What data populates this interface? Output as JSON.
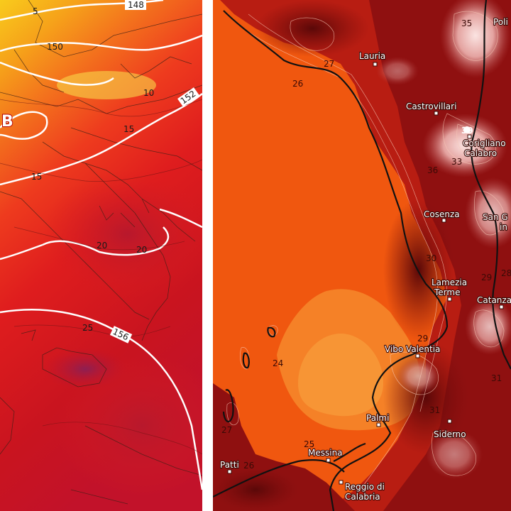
{
  "left_map": {
    "pressure_center": "B",
    "isohypses": [
      "148",
      "150",
      "152",
      "156"
    ],
    "isotherms": [
      "5",
      "10",
      "15",
      "15",
      "20",
      "20",
      "25"
    ]
  },
  "right_map": {
    "top_marker": "35",
    "cities": [
      {
        "name": "Lauria"
      },
      {
        "name": "Castrovillari"
      },
      {
        "name": "Corigliano",
        "name2": "Calabro"
      },
      {
        "name": "Cosenza"
      },
      {
        "name": "San G",
        "name2": "in"
      },
      {
        "name": "Lamezia",
        "name2": "Terme"
      },
      {
        "name": "Catanza"
      },
      {
        "name": "Vibo Valentia"
      },
      {
        "name": "Palmi"
      },
      {
        "name": "Siderno"
      },
      {
        "name": "Messina"
      },
      {
        "name": "Patti"
      },
      {
        "name": "Reggio di",
        "name2": "Calabria"
      },
      {
        "name": "Poli"
      }
    ],
    "temperatures": [
      "27",
      "26",
      "39",
      "36",
      "33",
      "30",
      "29",
      "28",
      "24",
      "29",
      "31",
      "27",
      "25",
      "26",
      "31"
    ]
  },
  "colors": {
    "sea_orange": "#f0570f",
    "land_dark": "#7a0c0c",
    "land_red": "#b81d12",
    "hot_pink": "#e9b3b0",
    "left_yellow": "#f7c51a",
    "left_red": "#d1141c"
  }
}
